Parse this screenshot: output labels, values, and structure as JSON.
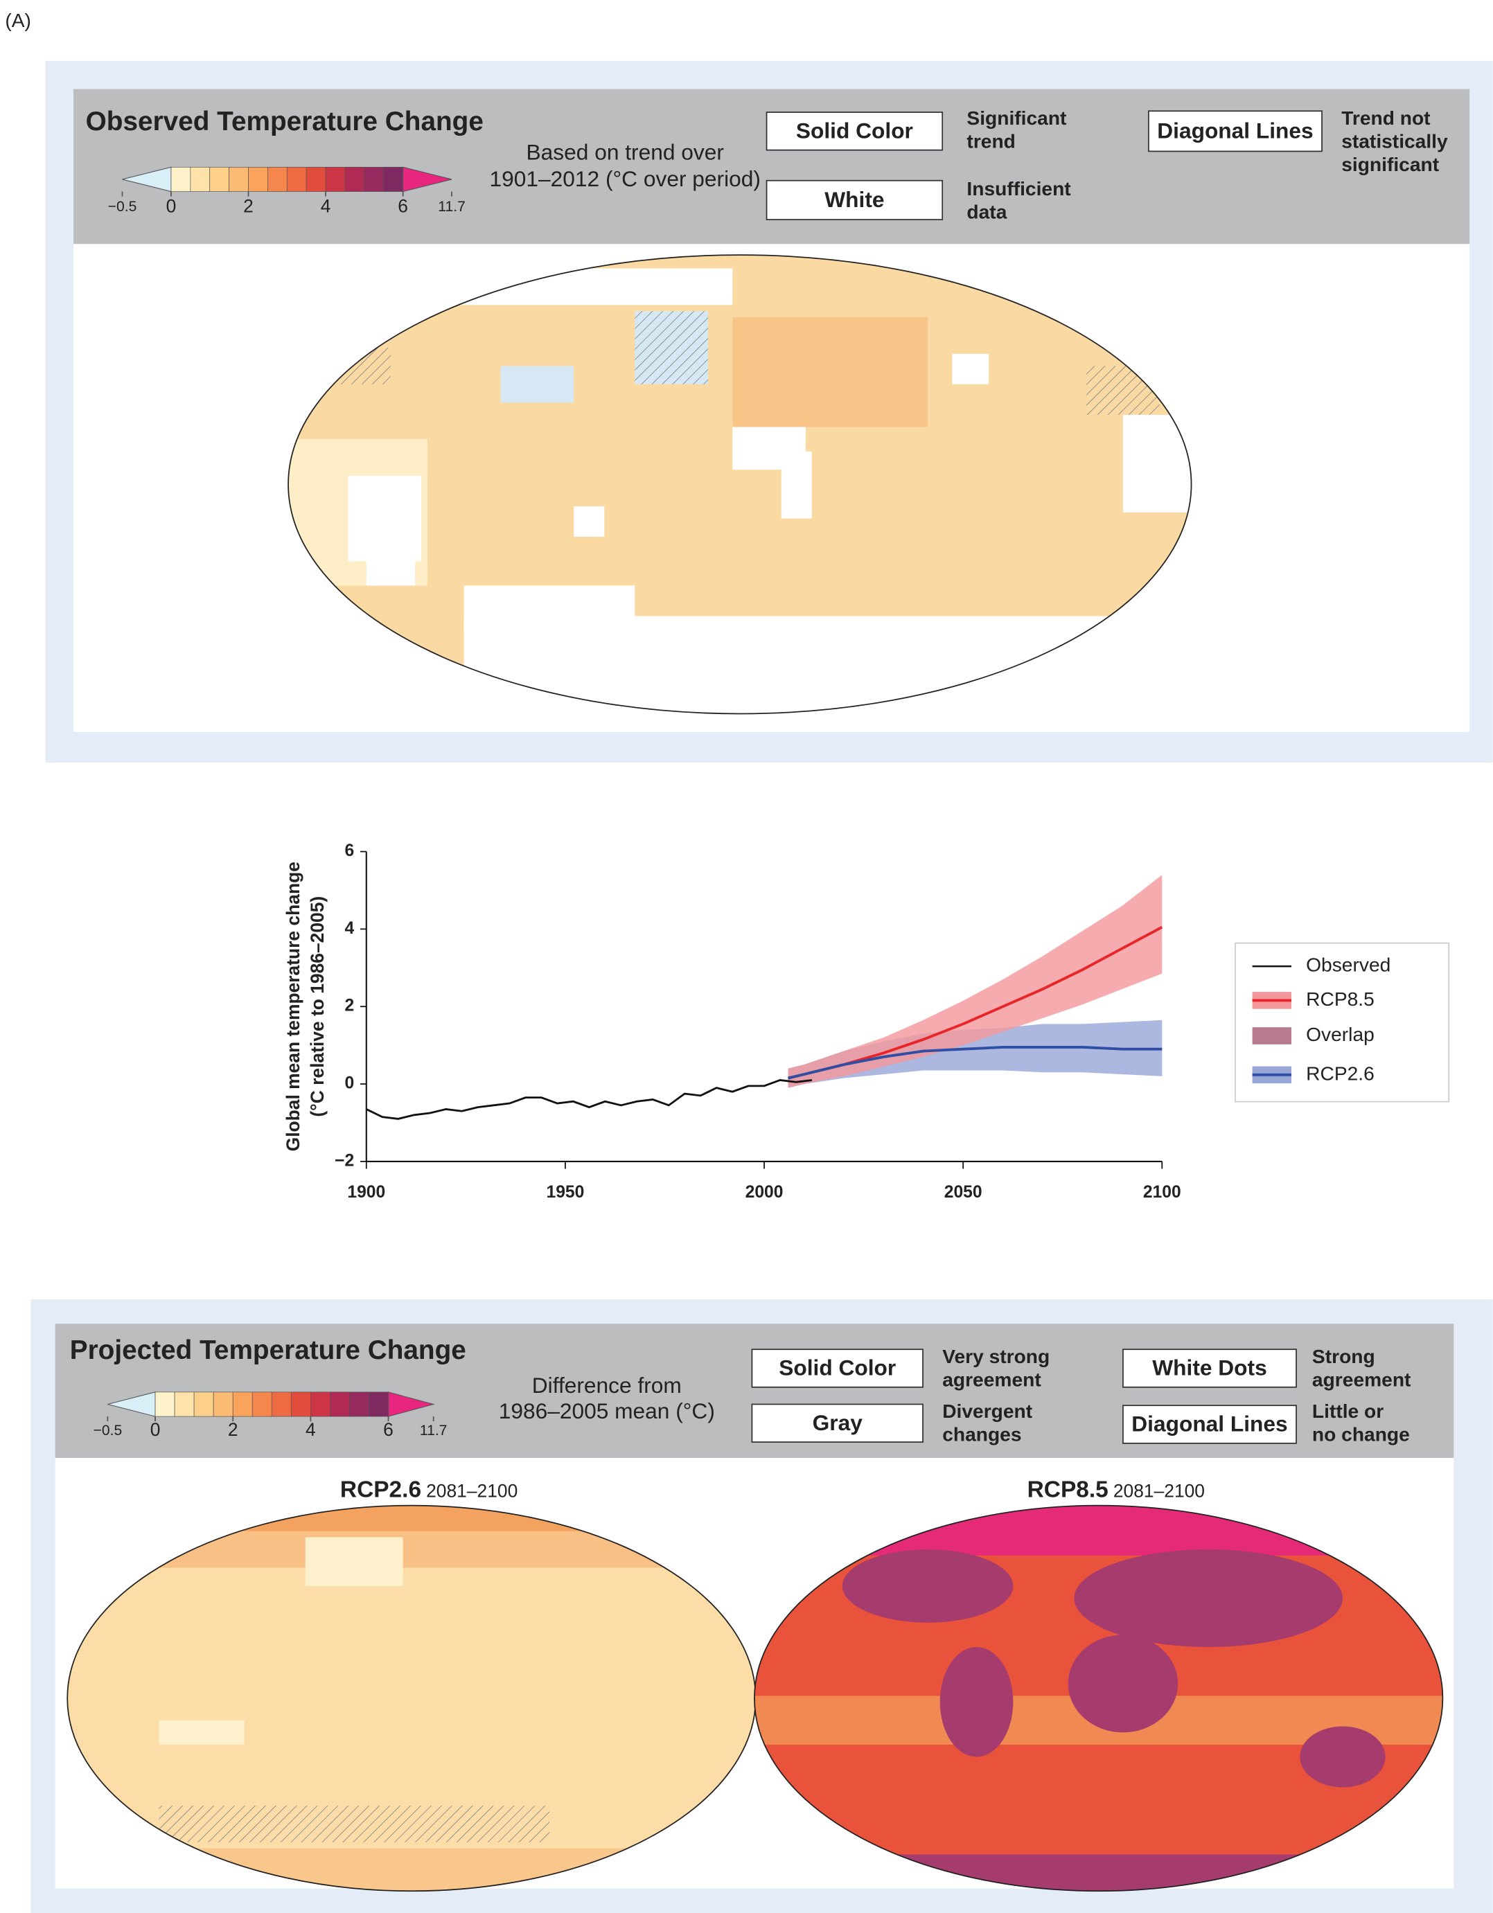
{
  "panel_label": "(A)",
  "colorbar": {
    "colors": [
      "#fdf2c9",
      "#fde3a9",
      "#fcd08b",
      "#fbbb72",
      "#f9a35d",
      "#f5874d",
      "#ee6a43",
      "#e24c3c",
      "#cc3545",
      "#b02a53",
      "#962a5e",
      "#7e2a60"
    ],
    "under_color": "#d9eff7",
    "over_color": "#e8257f",
    "ticks": [
      {
        "value": -0.5,
        "label": "−0.5"
      },
      0,
      2,
      4,
      6,
      11.7
    ]
  },
  "observed": {
    "title": "Observed Temperature Change",
    "colorbar_caption": [
      "Based on trend over",
      "1901–2012 (°C over period)"
    ],
    "legend": [
      {
        "box": "Solid Color",
        "description": [
          "Significant",
          "trend"
        ]
      },
      {
        "box": "White",
        "description": [
          "Insufficient",
          "data"
        ]
      },
      {
        "box": "Diagonal Lines",
        "description": [
          "Trend not",
          "statistically",
          "significant"
        ]
      }
    ]
  },
  "chart_data": {
    "type": "line",
    "ylabel": [
      "Global mean temperature change",
      "(°C relative to 1986–2005)"
    ],
    "xlim": [
      1900,
      2100
    ],
    "xticks": [
      1900,
      1950,
      2000,
      2050,
      2100
    ],
    "ylim": [
      -2,
      6
    ],
    "yticks": [
      {
        "value": -2,
        "label": "−2"
      },
      0,
      2,
      4,
      6
    ],
    "series": [
      {
        "name": "Observed",
        "color": "#111111",
        "x": [
          1900,
          1904,
          1908,
          1912,
          1916,
          1920,
          1924,
          1928,
          1932,
          1936,
          1940,
          1944,
          1948,
          1952,
          1956,
          1960,
          1964,
          1968,
          1972,
          1976,
          1980,
          1984,
          1988,
          1992,
          1996,
          2000,
          2004,
          2008,
          2012
        ],
        "values": [
          -0.65,
          -0.85,
          -0.9,
          -0.8,
          -0.75,
          -0.65,
          -0.7,
          -0.6,
          -0.55,
          -0.5,
          -0.35,
          -0.35,
          -0.5,
          -0.45,
          -0.6,
          -0.45,
          -0.55,
          -0.45,
          -0.4,
          -0.55,
          -0.25,
          -0.3,
          -0.1,
          -0.2,
          -0.05,
          -0.05,
          0.1,
          0.05,
          0.1
        ]
      },
      {
        "name": "RCP8.5",
        "color": "#e8262a",
        "band_color": "#f4979b",
        "x": [
          2006,
          2010,
          2020,
          2030,
          2040,
          2050,
          2060,
          2070,
          2080,
          2090,
          2100
        ],
        "values": [
          0.15,
          0.25,
          0.5,
          0.8,
          1.15,
          1.55,
          2.0,
          2.45,
          2.95,
          3.5,
          4.05
        ],
        "lower": [
          -0.1,
          0.0,
          0.2,
          0.45,
          0.7,
          1.0,
          1.35,
          1.7,
          2.05,
          2.45,
          2.85
        ],
        "upper": [
          0.4,
          0.5,
          0.85,
          1.2,
          1.65,
          2.15,
          2.7,
          3.3,
          3.95,
          4.6,
          5.4
        ]
      },
      {
        "name": "Overlap",
        "color": "#b77a90"
      },
      {
        "name": "RCP2.6",
        "color": "#2e4fa3",
        "band_color": "#98a6d8",
        "x": [
          2006,
          2010,
          2020,
          2030,
          2040,
          2050,
          2060,
          2070,
          2080,
          2090,
          2100
        ],
        "values": [
          0.15,
          0.25,
          0.5,
          0.7,
          0.85,
          0.9,
          0.95,
          0.95,
          0.95,
          0.9,
          0.9
        ],
        "lower": [
          -0.1,
          0.0,
          0.15,
          0.25,
          0.35,
          0.35,
          0.35,
          0.3,
          0.3,
          0.25,
          0.2
        ],
        "upper": [
          0.4,
          0.5,
          0.85,
          1.1,
          1.3,
          1.4,
          1.45,
          1.55,
          1.55,
          1.6,
          1.65
        ]
      }
    ]
  },
  "projected": {
    "title": "Projected Temperature Change",
    "colorbar_caption": [
      "Difference from",
      "1986–2005 mean (°C)"
    ],
    "legend": [
      {
        "box": "Solid Color",
        "description": [
          "Very strong",
          "agreement"
        ]
      },
      {
        "box": "Gray",
        "description": [
          "Divergent",
          "changes"
        ]
      },
      {
        "box": "White Dots",
        "description": [
          "Strong",
          "agreement"
        ]
      },
      {
        "box": "Diagonal Lines",
        "description": [
          "Little or",
          "no change"
        ]
      }
    ],
    "maps": [
      {
        "scenario": "RCP2.6",
        "period": "2081–2100"
      },
      {
        "scenario": "RCP8.5",
        "period": "2081–2100"
      }
    ]
  }
}
